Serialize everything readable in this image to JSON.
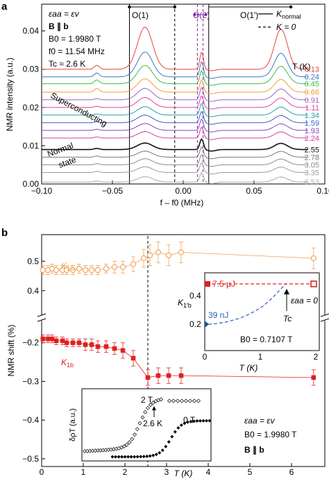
{
  "chart_data": [
    {
      "panel": "a",
      "type": "line",
      "ylabel": "NMR intensity (a.u.)",
      "xlabel": "f – f0 (MHz)",
      "xlim": [
        -0.1,
        0.1
      ],
      "ylim": [
        0,
        0.047
      ],
      "xticks": [
        "−0.10",
        "−0.05",
        "0.00",
        "0.05",
        "0.10"
      ],
      "yticks": [
        "0.00",
        "0.01",
        "0.02",
        "0.03",
        "0.04"
      ],
      "annotations": {
        "condition": "εaa = εv",
        "field_dir": "B ∥ b",
        "b0": "B0 = 1.9980 T",
        "f0": "f0 = 11.54 MHz",
        "tc": "Tc ≈ 2.6 K",
        "superconducting": "Superconducting",
        "normal": "Normal",
        "state": "state"
      },
      "peak_labels": [
        "O(1)",
        "O(2)",
        "O(1′)"
      ],
      "legend": {
        "solid": "K",
        "solid_sub": "normal",
        "dashed": "K = 0",
        "temp_header": "T (K)"
      },
      "marker_lines": {
        "black_solid": [
          -0.038,
          0.018
        ],
        "black_dashed": -0.006,
        "purple_dashed": [
          0.01,
          0.014
        ]
      },
      "series": [
        {
          "name": "0.13",
          "color": "#e8413c",
          "baseline": 0.03,
          "amp_main": 0.011,
          "amp_o2": 0.0045
        },
        {
          "name": "0.24",
          "color": "#3c78c2",
          "baseline": 0.028,
          "amp_main": 0.0065,
          "amp_o2": 0.004
        },
        {
          "name": "0.45",
          "color": "#46b44a",
          "baseline": 0.0262,
          "amp_main": 0.0048,
          "amp_o2": 0.0035
        },
        {
          "name": "0.66",
          "color": "#f29a3a",
          "baseline": 0.024,
          "amp_main": 0.0035,
          "amp_o2": 0.0033
        },
        {
          "name": "0.91",
          "color": "#a05fc4",
          "baseline": 0.022,
          "amp_main": 0.003,
          "amp_o2": 0.0033
        },
        {
          "name": "1.11",
          "color": "#e040a0",
          "baseline": 0.02,
          "amp_main": 0.0026,
          "amp_o2": 0.0031
        },
        {
          "name": "1.34",
          "color": "#22a0a8",
          "baseline": 0.018,
          "amp_main": 0.0022,
          "amp_o2": 0.0031
        },
        {
          "name": "1.59",
          "color": "#3b5cc8",
          "baseline": 0.016,
          "amp_main": 0.002,
          "amp_o2": 0.003
        },
        {
          "name": "1.93",
          "color": "#8a40c8",
          "baseline": 0.014,
          "amp_main": 0.0018,
          "amp_o2": 0.003
        },
        {
          "name": "2.24",
          "color": "#d040a0",
          "baseline": 0.012,
          "amp_main": 0.0017,
          "amp_o2": 0.0029
        },
        {
          "name": "2.55",
          "color": "#111111",
          "baseline": 0.009,
          "amp_main": 0.0017,
          "amp_o2": 0.0028
        },
        {
          "name": "2.78",
          "color": "#777777",
          "baseline": 0.007,
          "amp_main": 0.0016,
          "amp_o2": 0.0027
        },
        {
          "name": "3.05",
          "color": "#8a8a8a",
          "baseline": 0.005,
          "amp_main": 0.0016,
          "amp_o2": 0.0027
        },
        {
          "name": "3.35",
          "color": "#9a9a9a",
          "baseline": 0.003,
          "amp_main": 0.0015,
          "amp_o2": 0.0026
        },
        {
          "name": "6.53",
          "color": "#aaaaaa",
          "baseline": 0.0005,
          "amp_main": 0.0014,
          "amp_o2": 0.0025
        }
      ]
    },
    {
      "panel": "b",
      "type": "scatter",
      "ylabel": "NMR shift (%)",
      "xlabel": "T (K)",
      "xlim": [
        0,
        6.8
      ],
      "xticks": [
        "0",
        "1",
        "2",
        "3",
        "4",
        "5",
        "6"
      ],
      "yticks": [
        "0.5",
        "0.4",
        "−0.2",
        "−0.3",
        "−0.4",
        "−0.5"
      ],
      "tc_line_T": 2.55,
      "series": [
        {
          "name": "K1′b",
          "color": "#f0a050",
          "marker": "open-circle",
          "x": [
            0.03,
            0.15,
            0.25,
            0.35,
            0.5,
            0.6,
            0.75,
            0.9,
            1.05,
            1.2,
            1.35,
            1.55,
            1.75,
            1.95,
            2.2,
            2.45,
            2.6,
            2.8,
            3.05,
            3.35,
            6.53
          ],
          "y": [
            0.47,
            0.47,
            0.475,
            0.47,
            0.47,
            0.47,
            0.47,
            0.475,
            0.47,
            0.47,
            0.47,
            0.475,
            0.48,
            0.48,
            0.49,
            0.51,
            0.52,
            0.53,
            0.52,
            0.53,
            0.51
          ],
          "err": [
            0.015,
            0.015,
            0.015,
            0.015,
            0.015,
            0.015,
            0.015,
            0.015,
            0.015,
            0.015,
            0.015,
            0.015,
            0.02,
            0.02,
            0.025,
            0.03,
            0.035,
            0.035,
            0.035,
            0.035,
            0.035
          ]
        },
        {
          "name": "K1b",
          "color": "#e02020",
          "marker": "filled-square",
          "x": [
            0.03,
            0.15,
            0.25,
            0.35,
            0.5,
            0.6,
            0.75,
            0.9,
            1.05,
            1.2,
            1.35,
            1.55,
            1.75,
            1.95,
            2.2,
            2.55,
            2.8,
            3.05,
            3.35,
            6.53
          ],
          "y": [
            -0.19,
            -0.19,
            -0.19,
            -0.195,
            -0.195,
            -0.2,
            -0.2,
            -0.2,
            -0.205,
            -0.205,
            -0.21,
            -0.21,
            -0.215,
            -0.22,
            -0.24,
            -0.29,
            -0.285,
            -0.285,
            -0.285,
            -0.29
          ],
          "err": [
            0.01,
            0.01,
            0.01,
            0.01,
            0.01,
            0.01,
            0.01,
            0.01,
            0.015,
            0.015,
            0.015,
            0.015,
            0.015,
            0.02,
            0.02,
            0.02,
            0.02,
            0.02,
            0.02,
            0.02
          ]
        }
      ],
      "annotations": {
        "condition": "εaa = εv",
        "b0": "B0 = 1.9980 T",
        "field_dir": "B ∥ b"
      },
      "inset_right": {
        "ylabel": "K1′b",
        "xlabel": "T (K)",
        "xticks": [
          "0",
          "1",
          "2"
        ],
        "yticks": [
          "0.2",
          "0.4"
        ],
        "point_7_5uj": {
          "T": 0,
          "K": 0.47
        },
        "point_end": {
          "T": 1.8,
          "K": 0.47
        },
        "point_39nj": {
          "T": 0,
          "K": 0.18
        },
        "label_7_5uj": "7.5 μJ",
        "label_39nj": "39 nJ",
        "eps_zero": "εaa = 0",
        "tc": "Tc",
        "b0": "B0 = 0.7107 T"
      },
      "inset_left": {
        "ylabel": "δρT (a.u.)",
        "label_2t": "2 T",
        "label_0t": "0 T",
        "label_tc": "2.6 K"
      }
    }
  ],
  "panel_labels": {
    "a": "a",
    "b": "b"
  }
}
